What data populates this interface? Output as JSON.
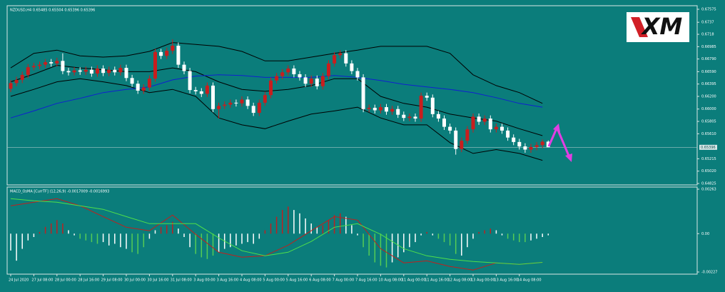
{
  "logo": "XM",
  "chart_data": [
    {
      "type": "candlestick",
      "title": "NZDUSD,H4  0.65485 0.65504 0.65396 0.65396",
      "open": [
        0.6632,
        0.6641,
        0.6646,
        0.6654,
        0.6666,
        0.6668,
        0.667,
        0.6674,
        0.6672,
        0.6676,
        0.666,
        0.6658,
        0.6661,
        0.6659,
        0.6662,
        0.6656,
        0.6664,
        0.6657,
        0.6662,
        0.6658,
        0.6665,
        0.6649,
        0.664,
        0.6629,
        0.6634,
        0.6648,
        0.669,
        0.6684,
        0.6692,
        0.67,
        0.667,
        0.666,
        0.663,
        0.6628,
        0.6624,
        0.6637,
        0.66,
        0.6605,
        0.6607,
        0.661,
        0.6609,
        0.6615,
        0.6605,
        0.6594,
        0.661,
        0.6622,
        0.6645,
        0.6652,
        0.6658,
        0.6664,
        0.6655,
        0.665,
        0.664,
        0.6648,
        0.6636,
        0.6652,
        0.6672,
        0.6685,
        0.6688,
        0.6672,
        0.666,
        0.665,
        0.66,
        0.6602,
        0.6598,
        0.6603,
        0.6596,
        0.66,
        0.6591,
        0.6586,
        0.6588,
        0.6585,
        0.6621,
        0.6618,
        0.6592,
        0.6585,
        0.6572,
        0.6566,
        0.6537,
        0.655,
        0.6568,
        0.6588,
        0.658,
        0.6585,
        0.6568,
        0.6572,
        0.6566,
        0.6555,
        0.6548,
        0.6541,
        0.6536,
        0.654,
        0.6543,
        0.65485
      ],
      "high": [
        0.6646,
        0.6651,
        0.6659,
        0.6671,
        0.6673,
        0.6675,
        0.6679,
        0.6679,
        0.6681,
        0.6688,
        0.6665,
        0.6666,
        0.6666,
        0.6667,
        0.6667,
        0.6669,
        0.6669,
        0.6667,
        0.6667,
        0.667,
        0.667,
        0.6654,
        0.6645,
        0.6639,
        0.6653,
        0.6695,
        0.6695,
        0.6697,
        0.671,
        0.6705,
        0.6675,
        0.6665,
        0.6635,
        0.6633,
        0.6642,
        0.6642,
        0.661,
        0.6612,
        0.6615,
        0.6615,
        0.662,
        0.662,
        0.661,
        0.6615,
        0.6627,
        0.665,
        0.6657,
        0.6663,
        0.6669,
        0.6669,
        0.666,
        0.6655,
        0.6653,
        0.6653,
        0.6657,
        0.6677,
        0.669,
        0.6693,
        0.6693,
        0.6677,
        0.6665,
        0.6655,
        0.6607,
        0.6607,
        0.6608,
        0.6608,
        0.6605,
        0.6605,
        0.6596,
        0.6593,
        0.6593,
        0.6626,
        0.6626,
        0.6623,
        0.6597,
        0.659,
        0.6577,
        0.6571,
        0.6555,
        0.6573,
        0.6593,
        0.6593,
        0.659,
        0.659,
        0.6577,
        0.6577,
        0.6571,
        0.656,
        0.6553,
        0.6546,
        0.6545,
        0.6548,
        0.6552,
        0.65504
      ],
      "low": [
        0.6627,
        0.6636,
        0.6641,
        0.6649,
        0.6661,
        0.6663,
        0.6665,
        0.6667,
        0.6667,
        0.6655,
        0.6653,
        0.6653,
        0.6654,
        0.6654,
        0.6651,
        0.6651,
        0.6652,
        0.6652,
        0.6653,
        0.6653,
        0.6644,
        0.6635,
        0.6624,
        0.6624,
        0.6629,
        0.6643,
        0.6679,
        0.6679,
        0.6687,
        0.6665,
        0.6655,
        0.6625,
        0.6623,
        0.6619,
        0.6619,
        0.6595,
        0.6585,
        0.66,
        0.6602,
        0.6604,
        0.6604,
        0.66,
        0.6589,
        0.6589,
        0.6605,
        0.6617,
        0.664,
        0.6647,
        0.6653,
        0.665,
        0.6645,
        0.6635,
        0.6635,
        0.6631,
        0.6631,
        0.6647,
        0.6667,
        0.668,
        0.6667,
        0.6655,
        0.6645,
        0.6595,
        0.6595,
        0.6593,
        0.6593,
        0.6591,
        0.6591,
        0.6586,
        0.6581,
        0.6581,
        0.658,
        0.658,
        0.6613,
        0.6587,
        0.658,
        0.6567,
        0.6561,
        0.6528,
        0.6532,
        0.6545,
        0.6563,
        0.6575,
        0.6575,
        0.6563,
        0.6563,
        0.6561,
        0.655,
        0.6543,
        0.6536,
        0.6531,
        0.6531,
        0.6535,
        0.6538,
        0.65396
      ],
      "close": [
        0.6641,
        0.6646,
        0.6654,
        0.6666,
        0.6668,
        0.667,
        0.6674,
        0.6672,
        0.6676,
        0.666,
        0.6658,
        0.6661,
        0.6659,
        0.6662,
        0.6656,
        0.6664,
        0.6657,
        0.6662,
        0.6658,
        0.6665,
        0.6649,
        0.664,
        0.6629,
        0.6634,
        0.6648,
        0.669,
        0.6684,
        0.6692,
        0.67,
        0.667,
        0.666,
        0.663,
        0.6628,
        0.6624,
        0.6637,
        0.66,
        0.6605,
        0.6607,
        0.661,
        0.6609,
        0.6615,
        0.6605,
        0.6594,
        0.661,
        0.6622,
        0.6645,
        0.6652,
        0.6658,
        0.6664,
        0.6655,
        0.665,
        0.664,
        0.6648,
        0.6636,
        0.6652,
        0.6672,
        0.6685,
        0.6688,
        0.6672,
        0.666,
        0.665,
        0.66,
        0.6602,
        0.6598,
        0.6603,
        0.6596,
        0.66,
        0.6591,
        0.6586,
        0.6588,
        0.6585,
        0.6621,
        0.6618,
        0.6592,
        0.6585,
        0.6572,
        0.6566,
        0.6537,
        0.655,
        0.6568,
        0.6588,
        0.658,
        0.6585,
        0.6568,
        0.6572,
        0.6566,
        0.6555,
        0.6548,
        0.6541,
        0.6536,
        0.654,
        0.6543,
        0.65485,
        0.65396
      ],
      "up_color": "#c81e1e",
      "down_color": "#ffffff",
      "overlays": {
        "x": [
          0,
          4,
          8,
          12,
          16,
          20,
          24,
          28,
          32,
          36,
          40,
          44,
          48,
          52,
          56,
          60,
          64,
          68,
          72,
          76,
          80,
          84,
          88,
          92
        ],
        "series": [
          {
            "color": "#000000",
            "values": [
              0.6665,
              0.6688,
              0.6693,
              0.6684,
              0.6682,
              0.6684,
              0.6691,
              0.6705,
              0.6702,
              0.6699,
              0.6691,
              0.6676,
              0.6676,
              0.6682,
              0.6688,
              0.6693,
              0.6699,
              0.6699,
              0.6699,
              0.6688,
              0.6654,
              0.6637,
              0.6626,
              0.6609
            ]
          },
          {
            "color": "#000000",
            "values": [
              0.6643,
              0.6655,
              0.6669,
              0.6665,
              0.6662,
              0.6659,
              0.6659,
              0.6665,
              0.6659,
              0.6643,
              0.6631,
              0.6628,
              0.6631,
              0.6637,
              0.6648,
              0.6648,
              0.662,
              0.6609,
              0.6603,
              0.6592,
              0.6586,
              0.6581,
              0.6569,
              0.6558
            ]
          },
          {
            "color": "#000000",
            "values": [
              0.662,
              0.6631,
              0.6643,
              0.6648,
              0.6643,
              0.6637,
              0.6626,
              0.6631,
              0.662,
              0.6586,
              0.6575,
              0.6569,
              0.6581,
              0.6592,
              0.6597,
              0.6603,
              0.6586,
              0.6575,
              0.6575,
              0.6547,
              0.653,
              0.6536,
              0.653,
              0.6519
            ]
          },
          {
            "color": "#1020d0",
            "values": [
              0.6586,
              0.6597,
              0.6609,
              0.6617,
              0.6626,
              0.6631,
              0.6635,
              0.6646,
              0.6652,
              0.6654,
              0.6653,
              0.665,
              0.665,
              0.665,
              0.6653,
              0.665,
              0.6645,
              0.6639,
              0.6635,
              0.6631,
              0.6626,
              0.6618,
              0.6609,
              0.6603
            ]
          }
        ]
      },
      "ylim": [
        0.64825,
        0.67575
      ],
      "yticks": [
        0.67575,
        0.6737,
        0.6718,
        0.66985,
        {
          "value": 0.6679,
          "label": "0.66790"
        },
        {
          "value": 0.6659,
          "label": "0.66590"
        },
        0.66395,
        {
          "value": 0.662,
          "label": "0.66200"
        },
        {
          "value": 0.66,
          "label": "0.66000"
        },
        0.65805,
        {
          "value": 0.6561,
          "label": "0.65610"
        },
        0.65215,
        {
          "value": 0.6502,
          "label": "0.65020"
        },
        0.64825
      ],
      "current_price": 0.65396,
      "xtick_labels": [
        "24 Jul 2020",
        "27 Jul 08:00",
        "28 Jul 00:00",
        "28 Jul 16:00",
        "29 Jul 08:00",
        "30 Jul 00:00",
        "30 Jul 16:00",
        "31 Jul 08:00",
        "3 Aug 00:00",
        "3 Aug 16:00",
        "4 Aug 08:00",
        "5 Aug 00:00",
        "5 Aug 16:00",
        "6 Aug 08:00",
        "7 Aug 00:00",
        "7 Aug 16:00",
        "10 Aug 08:00",
        "11 Aug 00:00",
        "11 Aug 16:00",
        "12 Aug 08:00",
        "13 Aug 00:00",
        "13 Aug 16:00",
        "14 Aug 08:00"
      ]
    },
    {
      "type": "macd",
      "title": "MACD_OsMA [CurrTF] (12,26,9) -0.0017009 -0.0016993",
      "histogram": [
        -0.001,
        -0.0016,
        -0.0009,
        -0.0004,
        -0.0002,
        0.0001,
        0.0004,
        0.0006,
        0.0008,
        0.0006,
        0.0002,
        -0.0001,
        -0.0003,
        -0.0004,
        -0.0005,
        -0.0006,
        -0.0005,
        -0.0007,
        -0.0006,
        -0.0008,
        -0.0009,
        -0.0011,
        -0.0012,
        -0.0008,
        -0.0003,
        0.0002,
        0.0004,
        0.0005,
        0.0007,
        0.0003,
        -0.0002,
        -0.0008,
        -0.0012,
        -0.0014,
        -0.0015,
        -0.0013,
        -0.0011,
        -0.0009,
        -0.0008,
        -0.0007,
        -0.0006,
        -0.0005,
        -0.0006,
        -0.0003,
        0.0002,
        0.0006,
        0.001,
        0.0014,
        0.0016,
        0.0014,
        0.0012,
        0.0009,
        0.0006,
        0.0004,
        0.0005,
        0.0008,
        0.0011,
        0.0012,
        0.001,
        0.0005,
        -0.0001,
        -0.0008,
        -0.0013,
        -0.0017,
        -0.0019,
        -0.002,
        -0.0017,
        -0.0014,
        -0.0011,
        -0.0008,
        -0.0005,
        -0.0001,
        0.0001,
        -0.0001,
        -0.0003,
        -0.0005,
        -0.0007,
        -0.0012,
        -0.0013,
        -0.0008,
        -0.0003,
        0.0001,
        0.0002,
        0.0003,
        0.0002,
        -0.0001,
        -0.0003,
        -0.0004,
        -0.0005,
        -0.0005,
        -0.0004,
        -0.0003,
        -0.0002,
        -0.0001
      ],
      "histogram_colors": [
        "#fff",
        "#fff",
        "#fff",
        "#fff",
        "#fff",
        "#b22",
        "#b22",
        "#b22",
        "#b22",
        "#b22",
        "#fff",
        "#fff",
        "#5c5",
        "#5c5",
        "#5c5",
        "#5c5",
        "#fff",
        "#fff",
        "#fff",
        "#fff",
        "#fff",
        "#5c5",
        "#5c5",
        "#5c5",
        "#fff",
        "#fff",
        "#b22",
        "#b22",
        "#b22",
        "#fff",
        "#fff",
        "#fff",
        "#5c5",
        "#5c5",
        "#5c5",
        "#5c5",
        "#fff",
        "#fff",
        "#fff",
        "#fff",
        "#fff",
        "#fff",
        "#fff",
        "#fff",
        "#b22",
        "#b22",
        "#b22",
        "#b22",
        "#b22",
        "#fff",
        "#fff",
        "#fff",
        "#fff",
        "#fff",
        "#b22",
        "#b22",
        "#b22",
        "#b22",
        "#fff",
        "#fff",
        "#fff",
        "#5c5",
        "#5c5",
        "#5c5",
        "#5c5",
        "#5c5",
        "#fff",
        "#fff",
        "#fff",
        "#fff",
        "#fff",
        "#fff",
        "#b22",
        "#fff",
        "#5c5",
        "#5c5",
        "#5c5",
        "#5c5",
        "#fff",
        "#fff",
        "#fff",
        "#b22",
        "#b22",
        "#b22",
        "#fff",
        "#fff",
        "#5c5",
        "#5c5",
        "#5c5",
        "#5c5",
        "#fff",
        "#fff",
        "#fff",
        "#fff"
      ],
      "x": [
        0,
        4,
        8,
        12,
        16,
        20,
        24,
        28,
        32,
        36,
        40,
        44,
        48,
        52,
        56,
        60,
        64,
        68,
        72,
        76,
        80,
        84,
        88,
        92
      ],
      "series": [
        {
          "color": "#c0201e",
          "values": [
            0.00165,
            0.00186,
            0.00207,
            0.00165,
            0.00101,
            0.00038,
            0.00017,
            0.0011,
            -4e-05,
            -0.0011,
            -0.00139,
            -0.00131,
            -0.00068,
            0.00017,
            0.00101,
            0.0008,
            -0.00089,
            -0.00173,
            -0.00161,
            -0.00194,
            -0.00215,
            -0.00173,
            -0.00182,
            -0.0017
          ]
        },
        {
          "color": "#4fe04a",
          "values": [
            0.00207,
            0.00194,
            0.00186,
            0.00165,
            0.00144,
            0.00101,
            0.00059,
            0.00059,
            0.00059,
            -0.00025,
            -0.00101,
            -0.00131,
            -0.0011,
            -0.00046,
            0.00038,
            0.00059,
            -4e-05,
            -0.00089,
            -0.00131,
            -0.00152,
            -0.00165,
            -0.00173,
            -0.00182,
            -0.0017
          ]
        }
      ],
      "ylim": [
        -0.00227,
        0.00263
      ],
      "yticks": [
        0.00263,
        {
          "value": 0,
          "label": "0.00"
        },
        -0.00227
      ]
    }
  ]
}
